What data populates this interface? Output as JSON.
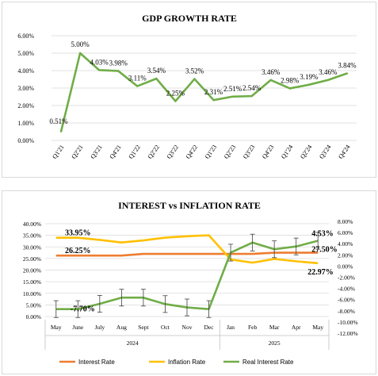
{
  "chart_data": [
    {
      "type": "line",
      "title": "GDP GROWTH RATE",
      "categories": [
        "Q1'21",
        "Q2'21",
        "Q3'21",
        "Q4'21",
        "Q1'22",
        "Q2'22",
        "Q3'22",
        "Q4'22",
        "Q1'23",
        "Q2'23",
        "Q3'23",
        "Q4'23",
        "Q1'24",
        "Q2'24",
        "Q3'24",
        "Q4'24"
      ],
      "series": [
        {
          "values": [
            0.51,
            5.0,
            4.03,
            3.98,
            3.11,
            3.54,
            2.25,
            3.52,
            2.31,
            2.51,
            2.54,
            3.46,
            2.98,
            3.19,
            3.46,
            3.84
          ],
          "labels": [
            "0.51%",
            "5.00%",
            "4.03%",
            "3.98%",
            "3.11%",
            "3.54%",
            "2.25%",
            "3.52%",
            "2.31%",
            "2.51%",
            "2.54%",
            "3.46%",
            "2.98%",
            "3.19%",
            "3.46%",
            "3.84%"
          ],
          "color": "#70ad47"
        }
      ],
      "yticks": [
        "0.00%",
        "1.00%",
        "2.00%",
        "3.00%",
        "4.00%",
        "5.00%",
        "6.00%"
      ],
      "ylim": [
        0,
        6
      ],
      "grid": true
    },
    {
      "type": "line",
      "title": "INTEREST vs INFLATION RATE",
      "categories": [
        "May",
        "June",
        "July",
        "Aug",
        "Sept",
        "Oct",
        "Nov",
        "Dec",
        "Jan",
        "Feb",
        "Mar",
        "Apr",
        "May"
      ],
      "year_groups": [
        {
          "label": "2024",
          "span": 8
        },
        {
          "label": "2025",
          "span": 5
        }
      ],
      "left_yticks": [
        "0.00%",
        "5.00%",
        "10.00%",
        "15.00%",
        "20.00%",
        "25.00%",
        "30.00%",
        "35.00%",
        "40.00%"
      ],
      "left_ylim": [
        0,
        40
      ],
      "right_yticks": [
        "8.00%",
        "6.00%",
        "4.00%",
        "2.00%",
        "0.00%",
        "-2.00%",
        "-4.00%",
        "-6.00%",
        "-8.00%",
        "-10.00%",
        "-12.00%"
      ],
      "right_ylim": [
        -12,
        8
      ],
      "series": [
        {
          "name": "Interest Rate",
          "color": "#ed7d31",
          "axis": "left",
          "values": [
            26.25,
            26.25,
            26.25,
            26.25,
            27.0,
            27.0,
            27.0,
            27.0,
            27.0,
            27.0,
            27.5,
            27.5,
            27.5
          ]
        },
        {
          "name": "Inflation Rate",
          "color": "#ffc000",
          "axis": "left",
          "values": [
            33.95,
            33.95,
            33.0,
            31.9,
            32.8,
            34.0,
            34.6,
            35.0,
            24.6,
            23.2,
            24.8,
            23.8,
            22.97
          ]
        },
        {
          "name": "Real Interest Rate",
          "color": "#70ad47",
          "axis": "right",
          "values": [
            -7.7,
            -7.7,
            -6.75,
            -5.65,
            -5.65,
            -6.8,
            -7.4,
            -7.7,
            2.4,
            4.2,
            3.0,
            3.5,
            4.53
          ],
          "error": 1.5
        }
      ],
      "annotations": [
        {
          "text": "33.95%",
          "series": 1,
          "index": 1
        },
        {
          "text": "26.25%",
          "series": 0,
          "index": 1
        },
        {
          "text": "-7.70%",
          "series": 2,
          "index": 1
        },
        {
          "text": "4.53%",
          "series": 2,
          "index": 12
        },
        {
          "text": "27.50%",
          "series": 0,
          "index": 12
        },
        {
          "text": "22.97%",
          "series": 1,
          "index": 12
        }
      ]
    }
  ]
}
